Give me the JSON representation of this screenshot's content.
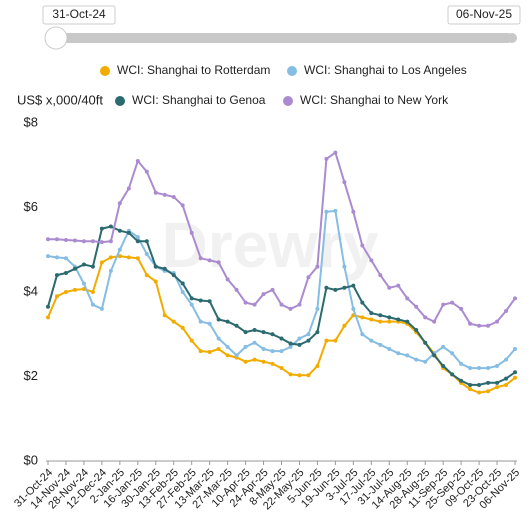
{
  "chart_data": {
    "type": "line",
    "range_start_label": "31-Oct-24",
    "range_end_label": "06-Nov-25",
    "y_axis_label": "US$ x,000/40ft",
    "watermark": "Drewry",
    "categories": [
      "31-Oct-24",
      null,
      "14-Nov-24",
      null,
      "28-Nov-24",
      null,
      "12-Dec-24",
      null,
      "2-Jan-25",
      null,
      "16-Jan-25",
      null,
      "30-Jan-25",
      null,
      "13-Feb-25",
      null,
      "27-Feb-25",
      null,
      "13-Mar-25",
      null,
      "27-Mar-25",
      null,
      "10-Apr-25",
      null,
      "24-Apr-25",
      null,
      "8-May-25",
      null,
      "22-May-25",
      null,
      "5-Jun-25",
      null,
      "19-Jun-25",
      null,
      "3-Jul-25",
      null,
      "17-Jul-25",
      null,
      "31-Jul-25",
      null,
      "14-Aug-25",
      null,
      "28-Aug-25",
      null,
      "11-Sep-25",
      null,
      "25-Sep-25",
      null,
      "09-Oct-25",
      null,
      "23-Oct-25",
      null,
      "06-Nov-25"
    ],
    "series": [
      {
        "name": "WCI: Shanghai to Rotterdam",
        "color": "#f2ac00",
        "values": [
          3.4,
          3.9,
          4.0,
          4.05,
          4.07,
          4.0,
          4.7,
          4.82,
          4.85,
          4.82,
          4.8,
          4.4,
          4.25,
          3.45,
          3.3,
          3.15,
          2.85,
          2.6,
          2.58,
          2.65,
          2.5,
          2.45,
          2.35,
          2.4,
          2.35,
          2.3,
          2.2,
          2.05,
          2.03,
          2.03,
          2.25,
          2.85,
          2.85,
          3.2,
          3.45,
          3.4,
          3.35,
          3.3,
          3.3,
          3.3,
          3.25,
          3.05,
          2.8,
          2.55,
          2.2,
          2.05,
          1.85,
          1.7,
          1.62,
          1.65,
          1.75,
          1.8,
          1.97
        ]
      },
      {
        "name": "WCI: Shanghai to Los Angeles",
        "color": "#86bde3",
        "values": [
          4.85,
          4.82,
          4.8,
          4.6,
          4.2,
          3.7,
          3.6,
          4.5,
          5.0,
          5.45,
          5.3,
          4.9,
          4.6,
          4.5,
          4.45,
          4.0,
          3.7,
          3.3,
          3.25,
          2.9,
          2.7,
          2.5,
          2.7,
          2.8,
          2.65,
          2.6,
          2.6,
          2.7,
          2.9,
          3.0,
          3.6,
          5.9,
          5.92,
          4.6,
          3.6,
          3.0,
          2.85,
          2.75,
          2.65,
          2.55,
          2.5,
          2.4,
          2.35,
          2.55,
          2.7,
          2.55,
          2.3,
          2.2,
          2.2,
          2.2,
          2.25,
          2.4,
          2.65
        ]
      },
      {
        "name": "WCI: Shanghai to Genoa",
        "color": "#2b6a6e",
        "values": [
          3.65,
          4.4,
          4.45,
          4.55,
          4.65,
          4.6,
          5.5,
          5.55,
          5.45,
          5.4,
          5.2,
          5.2,
          4.6,
          4.55,
          4.4,
          4.2,
          3.85,
          3.8,
          3.78,
          3.35,
          3.3,
          3.2,
          3.05,
          3.1,
          3.05,
          3.0,
          2.9,
          2.78,
          2.75,
          2.85,
          3.05,
          4.1,
          4.05,
          4.1,
          4.15,
          3.75,
          3.5,
          3.45,
          3.4,
          3.35,
          3.3,
          3.1,
          2.8,
          2.5,
          2.25,
          2.05,
          1.9,
          1.8,
          1.8,
          1.85,
          1.85,
          1.95,
          2.1
        ]
      },
      {
        "name": "WCI: Shanghai to New York",
        "color": "#ab8bd0",
        "values": [
          5.25,
          5.25,
          5.23,
          5.22,
          5.2,
          5.2,
          5.18,
          5.2,
          6.1,
          6.45,
          7.1,
          6.85,
          6.35,
          6.3,
          6.25,
          6.05,
          5.4,
          4.8,
          4.75,
          4.7,
          4.3,
          4.05,
          3.75,
          3.7,
          3.95,
          4.05,
          3.7,
          3.6,
          3.7,
          4.35,
          4.6,
          7.15,
          7.3,
          6.6,
          5.9,
          5.1,
          4.75,
          4.4,
          4.1,
          4.15,
          3.85,
          3.65,
          3.4,
          3.3,
          3.7,
          3.75,
          3.6,
          3.25,
          3.2,
          3.2,
          3.3,
          3.55,
          3.85
        ]
      }
    ],
    "ylim": [
      0,
      8
    ],
    "yticks": [
      {
        "value": 0,
        "label": "$0"
      },
      {
        "value": 2,
        "label": "$2"
      },
      {
        "value": 4,
        "label": "$4"
      },
      {
        "value": 6,
        "label": "$6"
      },
      {
        "value": 8,
        "label": "$8"
      }
    ],
    "grid": false
  }
}
